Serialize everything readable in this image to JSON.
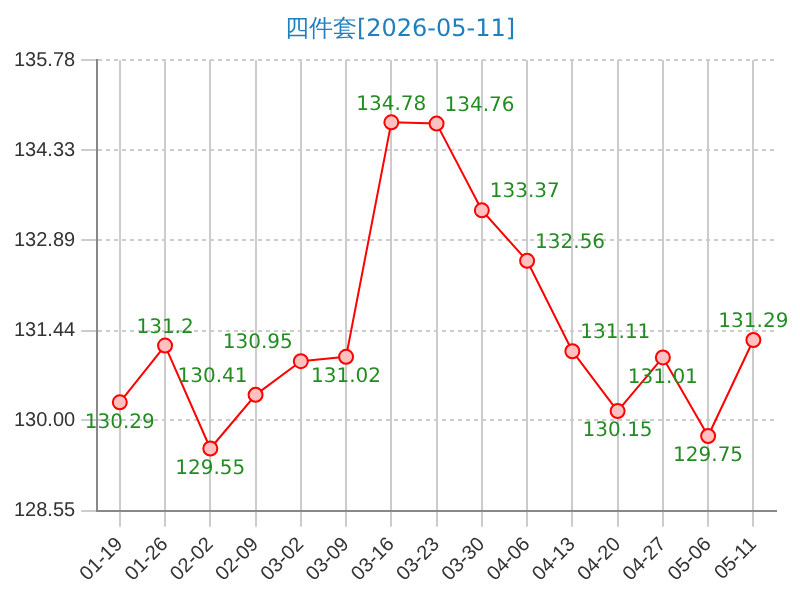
{
  "chart_data": {
    "type": "line",
    "title": "四件套[2026-05-11]",
    "categories": [
      "01-19",
      "01-26",
      "02-02",
      "02-09",
      "03-02",
      "03-09",
      "03-16",
      "03-23",
      "03-30",
      "04-06",
      "04-13",
      "04-20",
      "04-27",
      "05-06",
      "05-11"
    ],
    "series": [
      {
        "color": "#ff0000",
        "values": [
          130.29,
          131.2,
          129.55,
          130.41,
          130.95,
          131.02,
          134.78,
          134.76,
          133.37,
          132.56,
          131.11,
          130.15,
          131.01,
          129.75,
          131.29
        ]
      }
    ],
    "ylim": [
      128.55,
      135.78
    ],
    "yticks": [
      128.55,
      {
        "value": 130,
        "label": "130.00"
      },
      131.44,
      132.89,
      134.33,
      135.78
    ],
    "grid": true,
    "marker": "circle",
    "data_labels": true
  }
}
